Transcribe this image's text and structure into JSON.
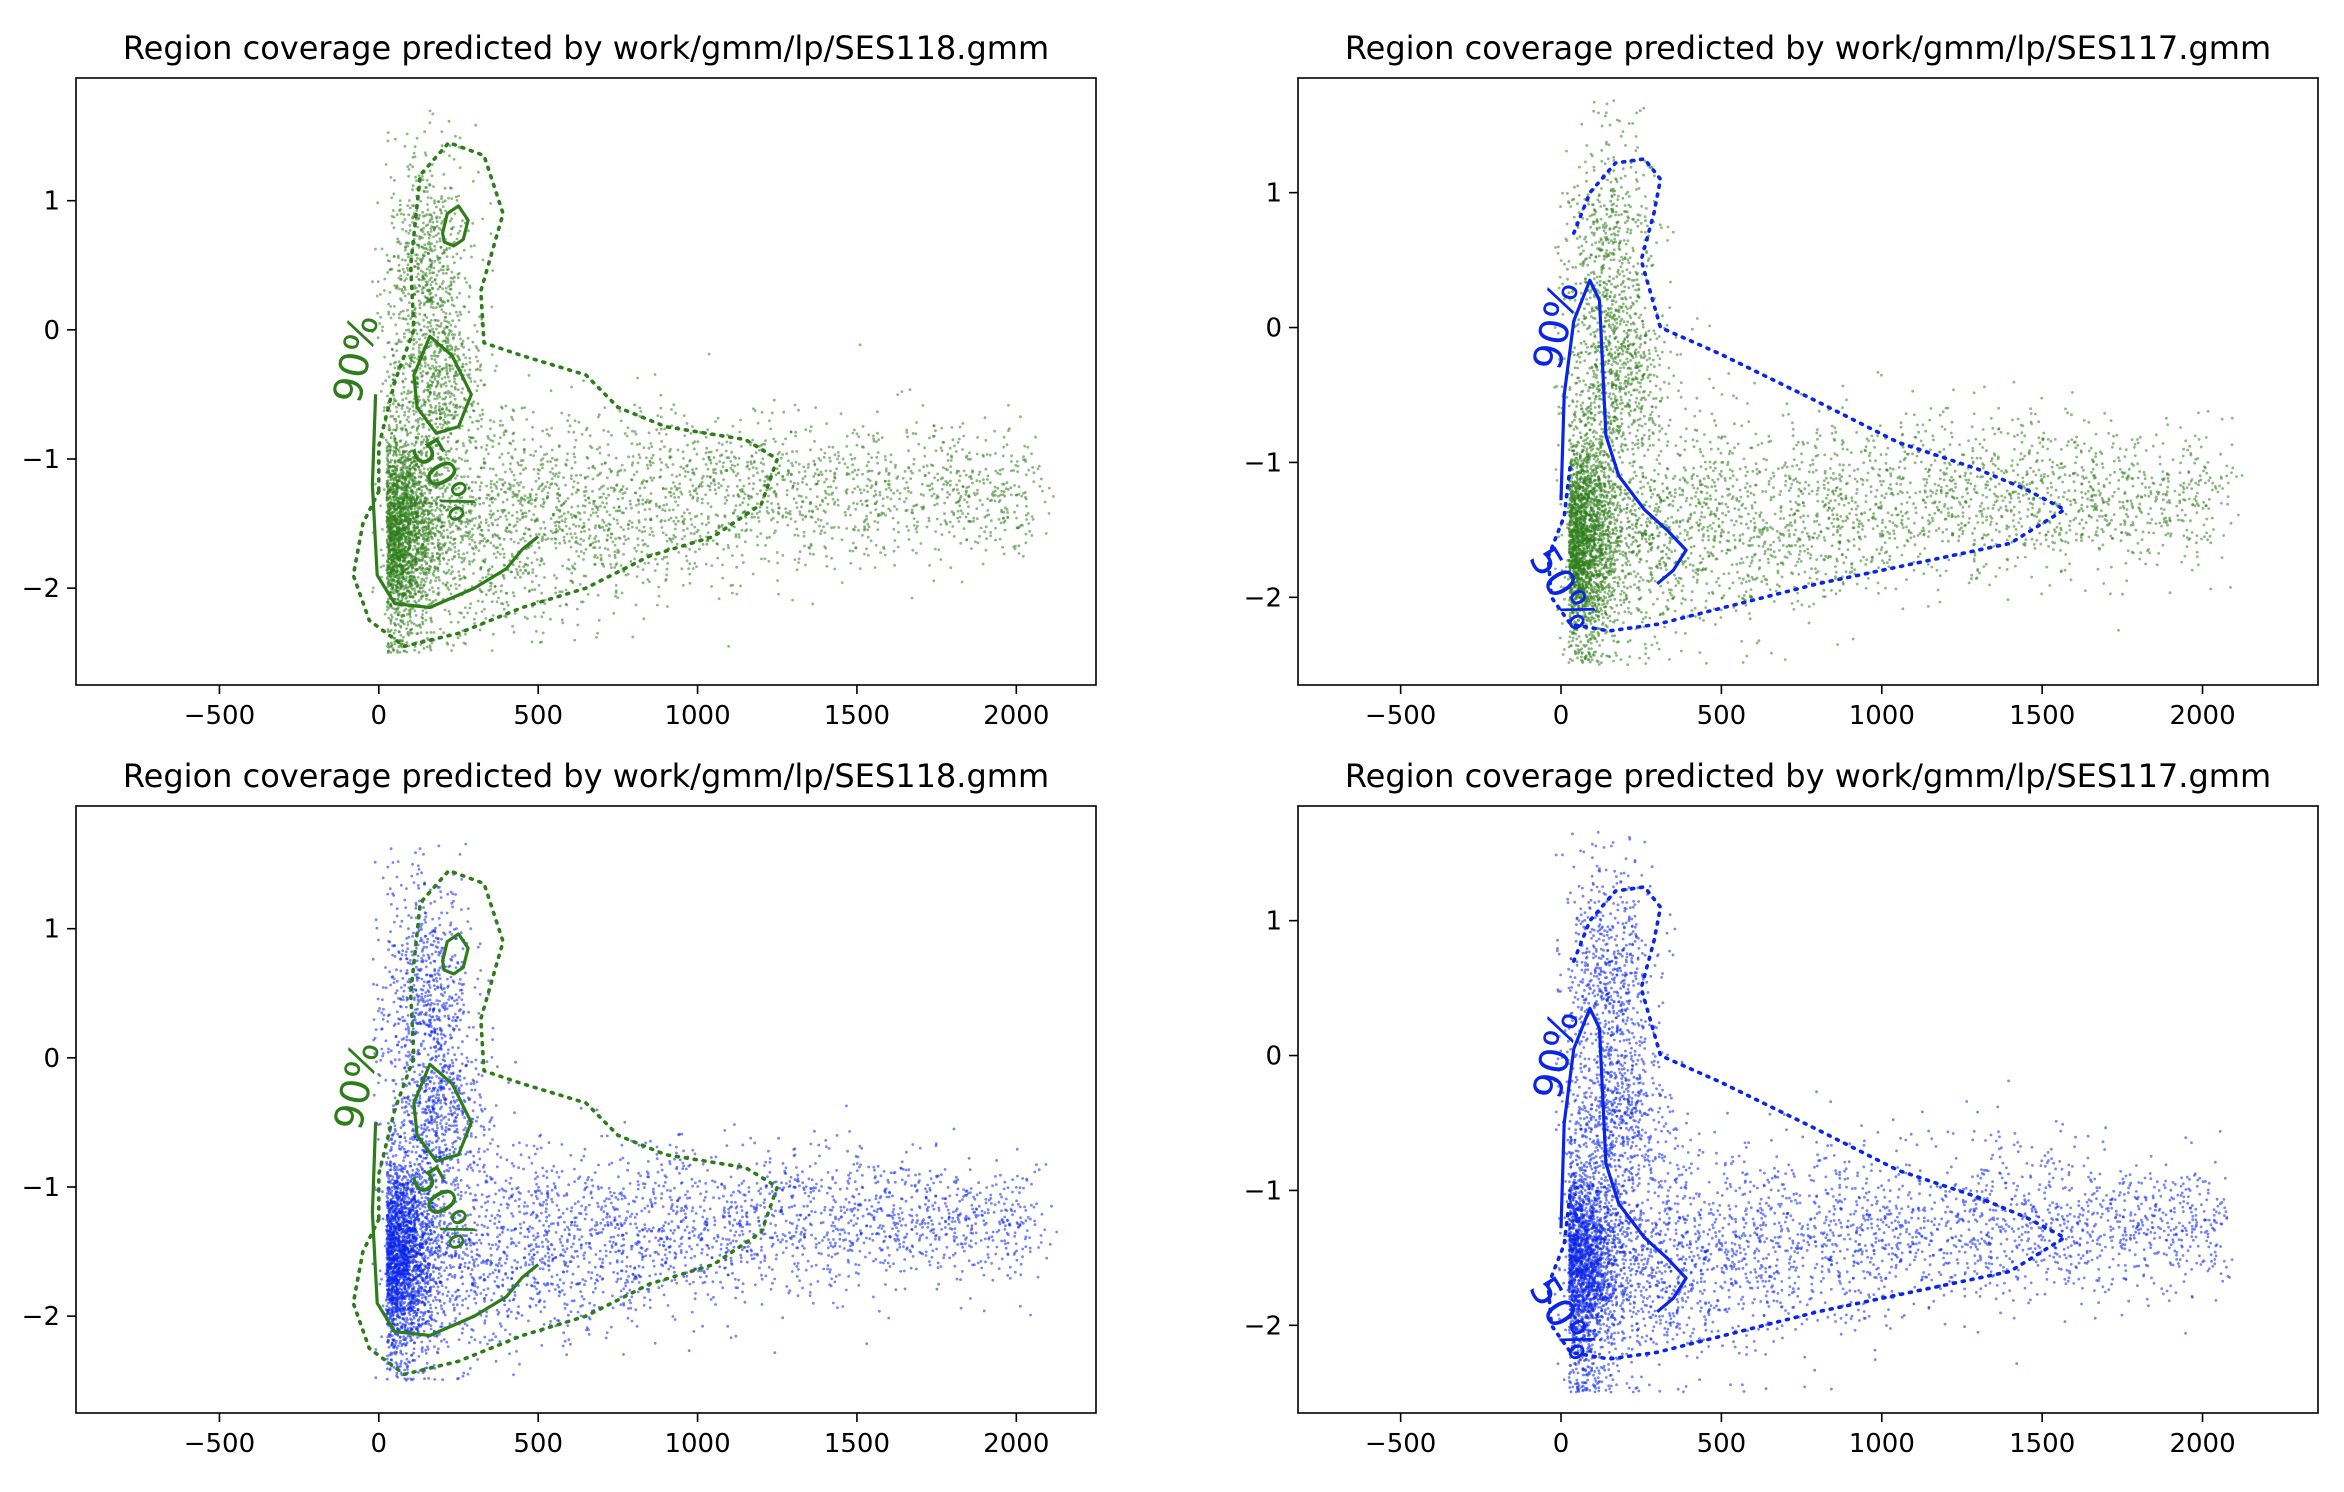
{
  "figure": {
    "background": "#ffffff",
    "colors": {
      "green": "#2e7d1a",
      "blue": "#0a24e8"
    }
  },
  "chart_data": [
    {
      "type": "scatter",
      "title": "Region coverage predicted by work/gmm/lp/SES118.gmm",
      "xlim": [
        -950,
        2250
      ],
      "ylim": [
        -2.75,
        1.95
      ],
      "xticks": [
        -500,
        0,
        500,
        1000,
        1500,
        2000
      ],
      "xtick_labels": [
        "−500",
        "0",
        "500",
        "1000",
        "1500",
        "2000"
      ],
      "yticks": [
        1,
        0,
        -1,
        -2
      ],
      "ytick_labels": [
        "1",
        "0",
        "−1",
        "−2"
      ],
      "points_color": "green",
      "contour_color": "green",
      "contour_labels": [
        "90%",
        "50%"
      ],
      "grid": false
    },
    {
      "type": "scatter",
      "title": "Region coverage predicted by work/gmm/lp/SES117.gmm",
      "xlim": [
        -820,
        2360
      ],
      "ylim": [
        -2.65,
        1.85
      ],
      "xticks": [
        -500,
        0,
        500,
        1000,
        1500,
        2000
      ],
      "xtick_labels": [
        "−500",
        "0",
        "500",
        "1000",
        "1500",
        "2000"
      ],
      "yticks": [
        1,
        0,
        -1,
        -2
      ],
      "ytick_labels": [
        "1",
        "0",
        "−1",
        "−2"
      ],
      "points_color": "green",
      "contour_color": "blue",
      "contour_labels": [
        "90%",
        "50%"
      ],
      "grid": false
    },
    {
      "type": "scatter",
      "title": "Region coverage predicted by work/gmm/lp/SES118.gmm",
      "xlim": [
        -950,
        2250
      ],
      "ylim": [
        -2.75,
        1.95
      ],
      "xticks": [
        -500,
        0,
        500,
        1000,
        1500,
        2000
      ],
      "xtick_labels": [
        "−500",
        "0",
        "500",
        "1000",
        "1500",
        "2000"
      ],
      "yticks": [
        1,
        0,
        -1,
        -2
      ],
      "ytick_labels": [
        "1",
        "0",
        "−1",
        "−2"
      ],
      "points_color": "blue",
      "contour_color": "green",
      "contour_labels": [
        "90%",
        "50%"
      ],
      "grid": false
    },
    {
      "type": "scatter",
      "title": "Region coverage predicted by work/gmm/lp/SES117.gmm",
      "xlim": [
        -820,
        2360
      ],
      "ylim": [
        -2.65,
        1.85
      ],
      "xticks": [
        -500,
        0,
        500,
        1000,
        1500,
        2000
      ],
      "xtick_labels": [
        "−500",
        "0",
        "500",
        "1000",
        "1500",
        "2000"
      ],
      "yticks": [
        1,
        0,
        -1,
        -2
      ],
      "ytick_labels": [
        "1",
        "0",
        "−1",
        "−2"
      ],
      "points_color": "blue",
      "contour_color": "blue",
      "contour_labels": [
        "90%",
        "50%"
      ],
      "grid": false
    }
  ]
}
